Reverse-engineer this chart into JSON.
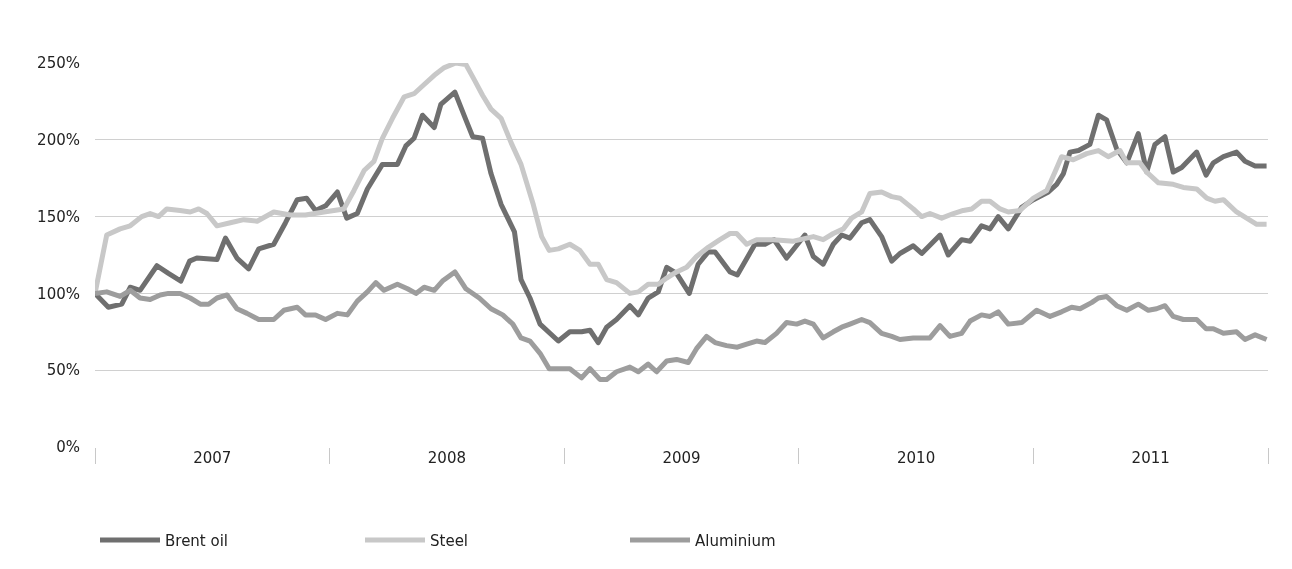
{
  "chart_data": {
    "type": "line",
    "xlim": [
      2007,
      2012
    ],
    "ylim": [
      0,
      250
    ],
    "xticks": [
      {
        "value": 2007,
        "label": null
      },
      {
        "value": 2007.5,
        "label": "2007"
      },
      {
        "value": 2008,
        "label": null
      },
      {
        "value": 2008.5,
        "label": "2008"
      },
      {
        "value": 2009,
        "label": null
      },
      {
        "value": 2009.5,
        "label": "2009"
      },
      {
        "value": 2010,
        "label": null
      },
      {
        "value": 2010.5,
        "label": "2010"
      },
      {
        "value": 2011,
        "label": null
      },
      {
        "value": 2011.5,
        "label": "2011"
      },
      {
        "value": 2012,
        "label": null
      }
    ],
    "yticks": [
      {
        "value": 0,
        "label": "0%"
      },
      {
        "value": 50,
        "label": "50%"
      },
      {
        "value": 100,
        "label": "100%"
      },
      {
        "value": 150,
        "label": "150%"
      },
      {
        "value": 200,
        "label": "200%"
      },
      {
        "value": 250,
        "label": "250%"
      }
    ],
    "grid": "y",
    "legend": "bottom left",
    "marker": "none",
    "line_style": "solid",
    "series": [
      {
        "name": "Brent oil",
        "color": "#6f6f6f",
        "x": [
          2007.0,
          2007.057,
          2007.114,
          2007.15,
          2007.192,
          2007.264,
          2007.313,
          2007.366,
          2007.403,
          2007.434,
          2007.52,
          2007.556,
          2007.605,
          2007.655,
          2007.698,
          2007.762,
          2007.812,
          2007.862,
          2007.902,
          2007.94,
          2007.983,
          2008.033,
          2008.073,
          2008.118,
          2008.161,
          2008.225,
          2008.289,
          2008.325,
          2008.36,
          2008.396,
          2008.446,
          2008.474,
          2008.534,
          2008.581,
          2008.61,
          2008.652,
          2008.688,
          2008.731,
          2008.788,
          2008.816,
          2008.854,
          2008.897,
          2008.975,
          2009.024,
          2009.074,
          2009.11,
          2009.145,
          2009.181,
          2009.223,
          2009.28,
          2009.316,
          2009.358,
          2009.401,
          2009.437,
          2009.479,
          2009.533,
          2009.571,
          2009.614,
          2009.643,
          2009.707,
          2009.738,
          2009.813,
          2009.856,
          2009.894,
          2009.948,
          2010.026,
          2010.062,
          2010.104,
          2010.147,
          2010.183,
          2010.218,
          2010.268,
          2010.303,
          2010.353,
          2010.396,
          2010.431,
          2010.488,
          2010.524,
          2010.602,
          2010.637,
          2010.694,
          2010.73,
          2010.779,
          2010.815,
          2010.85,
          2010.893,
          2010.95,
          2011.0,
          2011.064,
          2011.099,
          2011.128,
          2011.156,
          2011.192,
          2011.241,
          2011.277,
          2011.312,
          2011.355,
          2011.398,
          2011.447,
          2011.483,
          2011.518,
          2011.561,
          2011.596,
          2011.632,
          2011.696,
          2011.736,
          2011.767,
          2011.81,
          2011.866,
          2011.902,
          2011.945,
          2011.994
        ],
        "values": [
          100,
          91,
          93,
          104,
          102,
          118,
          113,
          108,
          121,
          123,
          122,
          136,
          123,
          116,
          129,
          132,
          146,
          161,
          162,
          154,
          157,
          166,
          149,
          152,
          168,
          184,
          184,
          196,
          201,
          216,
          208,
          223,
          231,
          213,
          202,
          201,
          178,
          158,
          140,
          109,
          97,
          80,
          69,
          75,
          75,
          76,
          68,
          78,
          83,
          92,
          86,
          97,
          101,
          117,
          113,
          100,
          119,
          127,
          127,
          114,
          112,
          132,
          132,
          135,
          123,
          138,
          124,
          119,
          132,
          138,
          136,
          146,
          148,
          137,
          121,
          126,
          131,
          126,
          138,
          125,
          135,
          134,
          144,
          142,
          150,
          142,
          156,
          161,
          166,
          171,
          178,
          192,
          193,
          197,
          216,
          213,
          194,
          185,
          204,
          179,
          197,
          202,
          179,
          182,
          192,
          177,
          185,
          189,
          192,
          186,
          183,
          183
        ]
      },
      {
        "name": "Steel",
        "color": "#c8c8c8",
        "x": [
          2007.0,
          2007.05,
          2007.107,
          2007.15,
          2007.199,
          2007.235,
          2007.271,
          2007.306,
          2007.363,
          2007.406,
          2007.442,
          2007.477,
          2007.52,
          2007.577,
          2007.634,
          2007.691,
          2007.762,
          2007.833,
          2007.897,
          2007.976,
          2008.061,
          2008.104,
          2008.147,
          2008.189,
          2008.225,
          2008.268,
          2008.318,
          2008.36,
          2008.403,
          2008.446,
          2008.489,
          2008.538,
          2008.581,
          2008.617,
          2008.652,
          2008.688,
          2008.731,
          2008.774,
          2008.816,
          2008.868,
          2008.904,
          2008.936,
          2008.975,
          2009.024,
          2009.067,
          2009.11,
          2009.145,
          2009.181,
          2009.223,
          2009.28,
          2009.316,
          2009.358,
          2009.401,
          2009.437,
          2009.479,
          2009.522,
          2009.564,
          2009.614,
          2009.664,
          2009.707,
          2009.735,
          2009.778,
          2009.82,
          2009.891,
          2009.977,
          2010.062,
          2010.104,
          2010.147,
          2010.19,
          2010.225,
          2010.268,
          2010.303,
          2010.353,
          2010.396,
          2010.431,
          2010.488,
          2010.524,
          2010.559,
          2010.609,
          2010.659,
          2010.701,
          2010.737,
          2010.779,
          2010.815,
          2010.858,
          2010.893,
          2010.943,
          2011.0,
          2011.057,
          2011.092,
          2011.12,
          2011.17,
          2011.227,
          2011.277,
          2011.319,
          2011.369,
          2011.398,
          2011.454,
          2011.483,
          2011.533,
          2011.596,
          2011.639,
          2011.696,
          2011.739,
          2011.774,
          2011.81,
          2011.866,
          2011.909,
          2011.952,
          2011.994
        ],
        "values": [
          100,
          138,
          142,
          144,
          150,
          152,
          150,
          155,
          154,
          153,
          155,
          152,
          144,
          146,
          148,
          147,
          153,
          151,
          151,
          153,
          155,
          167,
          180,
          186,
          201,
          214,
          228,
          230,
          236,
          242,
          247,
          250,
          249,
          239,
          229,
          220,
          214,
          198,
          184,
          158,
          137,
          128,
          129,
          132,
          128,
          119,
          119,
          109,
          107,
          100,
          101,
          106,
          106,
          110,
          114,
          117,
          124,
          130,
          135,
          139,
          139,
          132,
          135,
          135,
          134,
          137,
          135,
          139,
          142,
          149,
          153,
          165,
          166,
          163,
          162,
          155,
          150,
          152,
          149,
          152,
          154,
          155,
          160,
          160,
          155,
          153,
          154,
          162,
          167,
          179,
          189,
          187,
          191,
          193,
          189,
          193,
          185,
          185,
          179,
          172,
          171,
          169,
          168,
          162,
          160,
          161,
          153,
          149,
          145,
          145
        ]
      },
      {
        "name": "Aluminium",
        "color": "#9d9d9d",
        "x": [
          2007.0,
          2007.05,
          2007.107,
          2007.15,
          2007.192,
          2007.235,
          2007.278,
          2007.313,
          2007.363,
          2007.406,
          2007.449,
          2007.484,
          2007.52,
          2007.563,
          2007.605,
          2007.648,
          2007.698,
          2007.762,
          2007.805,
          2007.862,
          2007.897,
          2007.94,
          2007.983,
          2008.033,
          2008.076,
          2008.118,
          2008.161,
          2008.197,
          2008.232,
          2008.289,
          2008.332,
          2008.368,
          2008.403,
          2008.446,
          2008.481,
          2008.534,
          2008.581,
          2008.638,
          2008.688,
          2008.738,
          2008.781,
          2008.816,
          2008.854,
          2008.897,
          2008.936,
          2009.024,
          2009.074,
          2009.11,
          2009.152,
          2009.181,
          2009.223,
          2009.28,
          2009.316,
          2009.358,
          2009.394,
          2009.437,
          2009.479,
          2009.529,
          2009.564,
          2009.607,
          2009.643,
          2009.692,
          2009.738,
          2009.778,
          2009.82,
          2009.856,
          2009.905,
          2009.948,
          2009.991,
          2010.026,
          2010.062,
          2010.104,
          2010.147,
          2010.183,
          2010.218,
          2010.268,
          2010.303,
          2010.353,
          2010.396,
          2010.431,
          2010.488,
          2010.559,
          2010.602,
          2010.644,
          2010.694,
          2010.73,
          2010.779,
          2010.815,
          2010.85,
          2010.893,
          2010.95,
          2011.014,
          2011.071,
          2011.12,
          2011.163,
          2011.199,
          2011.248,
          2011.277,
          2011.312,
          2011.355,
          2011.398,
          2011.447,
          2011.49,
          2011.525,
          2011.561,
          2011.596,
          2011.639,
          2011.696,
          2011.736,
          2011.767,
          2011.81,
          2011.866,
          2011.902,
          2011.945,
          2011.994
        ],
        "values": [
          100,
          101,
          98,
          102,
          97,
          96,
          99,
          100,
          100,
          97,
          93,
          93,
          97,
          99,
          90,
          87,
          83,
          83,
          89,
          91,
          86,
          86,
          83,
          87,
          86,
          95,
          101,
          107,
          102,
          106,
          103,
          100,
          104,
          102,
          108,
          114,
          103,
          97,
          90,
          86,
          80,
          71,
          69,
          61,
          51,
          51,
          45,
          51,
          44,
          44,
          49,
          52,
          49,
          54,
          49,
          56,
          57,
          55,
          64,
          72,
          68,
          66,
          65,
          67,
          69,
          68,
          74,
          81,
          80,
          82,
          80,
          71,
          75,
          78,
          80,
          83,
          81,
          74,
          72,
          70,
          71,
          71,
          79,
          72,
          74,
          82,
          86,
          85,
          88,
          80,
          81,
          89,
          85,
          88,
          91,
          90,
          94,
          97,
          98,
          92,
          89,
          93,
          89,
          90,
          92,
          85,
          83,
          83,
          77,
          77,
          74,
          75,
          70,
          73,
          70
        ]
      }
    ]
  }
}
